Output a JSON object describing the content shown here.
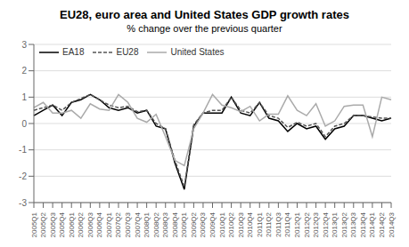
{
  "chart_data": {
    "type": "line",
    "title": "EU28, euro area and United States GDP growth rates",
    "subtitle": "% change over the previous quarter",
    "categories": [
      "2005Q1",
      "2005Q2",
      "2005Q3",
      "2005Q4",
      "2006Q1",
      "2006Q2",
      "2006Q3",
      "2006Q4",
      "2007Q1",
      "2007Q2",
      "2007Q3",
      "2007Q4",
      "2008Q1",
      "2008Q2",
      "2008Q3",
      "2008Q4",
      "2009Q1",
      "2009Q2",
      "2009Q3",
      "2009Q4",
      "2010Q1",
      "2010Q2",
      "2010Q3",
      "2010Q4",
      "2011Q1",
      "2011Q2",
      "2011Q3",
      "2011Q4",
      "2012Q1",
      "2012Q2",
      "2012Q3",
      "2012Q4",
      "2013Q1",
      "2013Q2",
      "2013Q3",
      "2013Q4",
      "2014Q1",
      "2014Q2",
      "2014Q3"
    ],
    "series": [
      {
        "name": "EA18",
        "color": "#000000",
        "line_style": "solid",
        "values": [
          0.3,
          0.5,
          0.7,
          0.3,
          0.8,
          0.9,
          1.1,
          0.9,
          0.6,
          0.5,
          0.6,
          0.4,
          0.5,
          -0.1,
          -0.2,
          -1.5,
          -2.5,
          -0.1,
          0.4,
          0.4,
          0.4,
          1.0,
          0.4,
          0.3,
          0.8,
          0.2,
          0.1,
          -0.3,
          0.0,
          -0.2,
          -0.1,
          -0.6,
          -0.2,
          -0.1,
          0.3,
          0.3,
          0.2,
          0.1,
          0.2
        ]
      },
      {
        "name": "EU28",
        "color": "#555555",
        "line_style": "dashed",
        "values": [
          0.5,
          0.6,
          0.7,
          0.5,
          0.8,
          0.95,
          1.1,
          0.9,
          0.7,
          0.6,
          0.65,
          0.45,
          0.5,
          0.0,
          -0.2,
          -1.4,
          -2.4,
          -0.05,
          0.4,
          0.5,
          0.5,
          1.0,
          0.5,
          0.4,
          0.8,
          0.3,
          0.2,
          -0.15,
          0.05,
          -0.1,
          0.0,
          -0.5,
          -0.1,
          0.0,
          0.3,
          0.3,
          0.25,
          0.2,
          0.2
        ]
      },
      {
        "name": "United States",
        "color": "#aaaaaa",
        "line_style": "solid",
        "values": [
          0.6,
          0.8,
          0.4,
          0.4,
          0.5,
          0.2,
          0.75,
          0.55,
          0.5,
          1.1,
          0.8,
          0.2,
          0.05,
          0.35,
          -0.5,
          -1.4,
          -1.6,
          -0.2,
          0.4,
          1.1,
          0.7,
          0.6,
          0.45,
          0.65,
          0.1,
          0.35,
          0.35,
          1.05,
          0.5,
          0.3,
          0.75,
          -0.1,
          0.1,
          0.65,
          0.7,
          0.7,
          -0.5,
          1.0,
          0.9
        ]
      }
    ],
    "ylim": [
      -3,
      3
    ],
    "yticks": [
      -3,
      -2,
      -1,
      0,
      1,
      2,
      3
    ],
    "grid": true,
    "legend": "upper left"
  }
}
